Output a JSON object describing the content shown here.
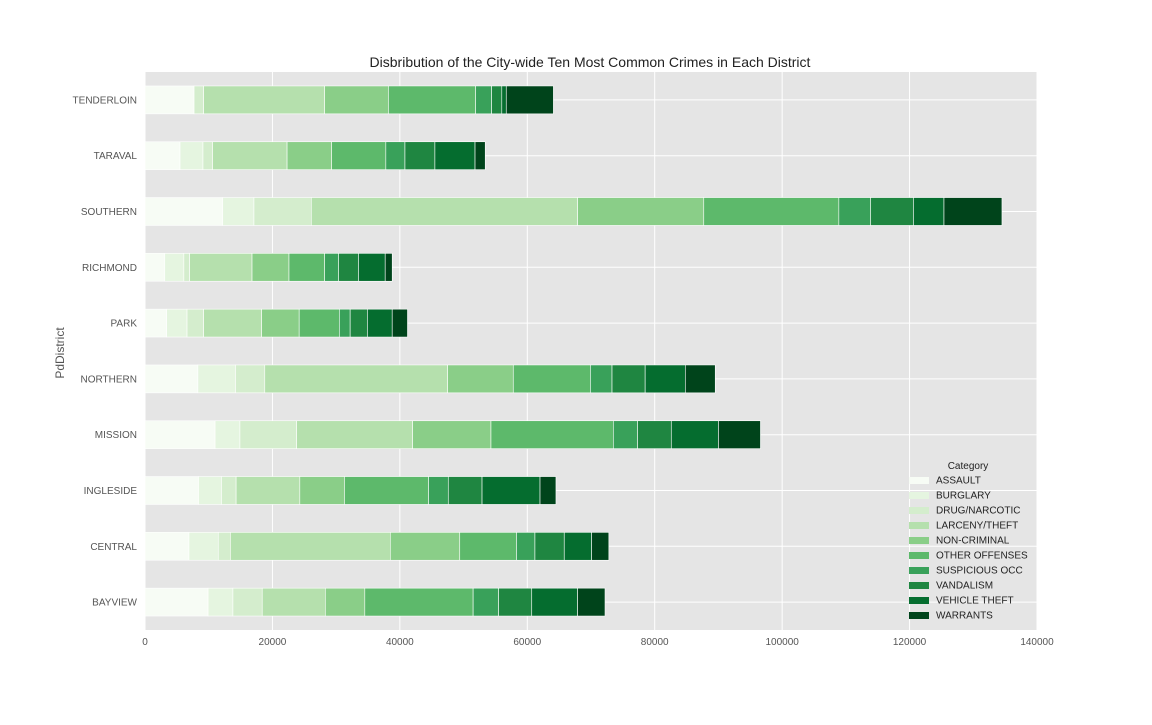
{
  "chart_data": {
    "type": "bar",
    "orientation": "horizontal",
    "stacked": true,
    "title": "Disbribution of the City-wide Ten Most Common Crimes in Each District",
    "xlabel": "",
    "ylabel": "PdDistrict",
    "xlim": [
      0,
      140000
    ],
    "xticks": [
      "0",
      "20000",
      "40000",
      "60000",
      "80000",
      "100000",
      "120000",
      "140000"
    ],
    "grid": true,
    "legend": {
      "title": "Category",
      "placement": "lower-right"
    },
    "categories": [
      "BAYVIEW",
      "CENTRAL",
      "INGLESIDE",
      "MISSION",
      "NORTHERN",
      "PARK",
      "RICHMOND",
      "SOUTHERN",
      "TARAVAL",
      "TENDERLOIN"
    ],
    "series": [
      {
        "name": "ASSAULT",
        "color": "#f7fcf5",
        "values": [
          9900,
          6900,
          8400,
          11000,
          8300,
          3400,
          3100,
          12200,
          5500,
          7700
        ]
      },
      {
        "name": "BURGLARY",
        "color": "#e5f5e0",
        "values": [
          3900,
          4600,
          3600,
          3900,
          5900,
          3200,
          3000,
          4900,
          3600,
          0
        ]
      },
      {
        "name": "DRUG/NARCOTIC",
        "color": "#d4edcd",
        "values": [
          4600,
          1900,
          2300,
          8900,
          4600,
          2600,
          900,
          9000,
          1500,
          1500
        ]
      },
      {
        "name": "LARCENY/THEFT",
        "color": "#b5e0ad",
        "values": [
          9900,
          25100,
          10000,
          18200,
          28700,
          9100,
          9800,
          41800,
          11700,
          19000
        ]
      },
      {
        "name": "NON-CRIMINAL",
        "color": "#8ace88",
        "values": [
          6200,
          10900,
          7000,
          12300,
          10300,
          5900,
          5800,
          19800,
          7000,
          10000
        ]
      },
      {
        "name": "OTHER OFFENSES",
        "color": "#5db96b",
        "values": [
          17000,
          8900,
          13200,
          19200,
          12100,
          6300,
          5600,
          21200,
          8500,
          13700
        ]
      },
      {
        "name": "SUSPICIOUS OCC",
        "color": "#39a15a",
        "values": [
          4000,
          2900,
          3100,
          3800,
          3400,
          1700,
          2200,
          5000,
          3000,
          2500
        ]
      },
      {
        "name": "VANDALISM",
        "color": "#1f8641",
        "values": [
          5200,
          4600,
          5300,
          5300,
          5200,
          2700,
          3100,
          6700,
          4700,
          1600
        ]
      },
      {
        "name": "VEHICLE THEFT",
        "color": "#056d2f",
        "values": [
          7200,
          4300,
          9100,
          7400,
          6300,
          3900,
          4200,
          4800,
          6300,
          700
        ]
      },
      {
        "name": "WARRANTS",
        "color": "#00441b",
        "values": [
          4300,
          2700,
          2500,
          6600,
          4700,
          2400,
          1100,
          9100,
          1600,
          7400
        ]
      }
    ]
  }
}
